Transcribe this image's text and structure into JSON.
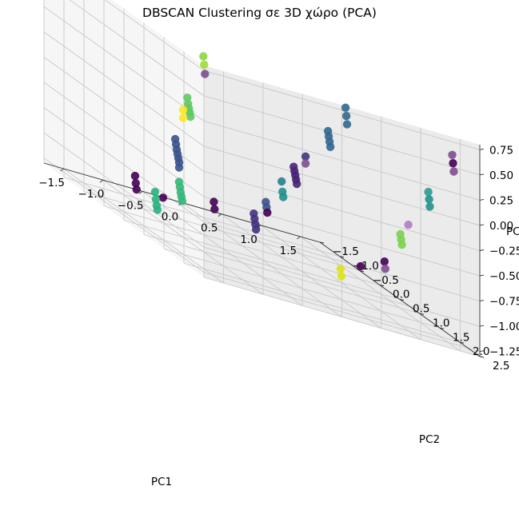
{
  "chart_data": {
    "type": "scatter",
    "projection": "3d",
    "title": "DBSCAN Clustering σε 3D χώρο (PCA)",
    "xlabel": "PC1",
    "ylabel": "PC2",
    "zlabel": "PC",
    "xlim": [
      -1.75,
      1.75
    ],
    "ylim": [
      -1.5,
      2.5
    ],
    "zlim": [
      -1.3,
      0.8
    ],
    "xticks": [
      "−1.5",
      "−1.0",
      "−0.5",
      "0.0",
      "0.5",
      "1.0",
      "1.5"
    ],
    "yticks": [
      "−1.5",
      "−1.0",
      "−0.5",
      "0.0",
      "0.5",
      "1.0",
      "1.5",
      "2.0",
      "2.5"
    ],
    "zticks": [
      "−1.25",
      "−1.00",
      "−0.75",
      "−0.50",
      "−0.25",
      "0.00",
      "0.25",
      "0.50",
      "0.75"
    ],
    "grid": true,
    "colormap": "viridis",
    "points": [
      {
        "x": -1.25,
        "y": 1.5,
        "z": 0.72,
        "c": "#8bd646"
      },
      {
        "x": -1.24,
        "y": 1.5,
        "z": 0.64,
        "c": "#a0da39"
      },
      {
        "x": -1.23,
        "y": 1.5,
        "z": 0.55,
        "c": "#7e4e90"
      },
      {
        "x": -1.2,
        "y": 1.0,
        "z": 0.18,
        "c": "#5ec962"
      },
      {
        "x": -1.19,
        "y": 1.0,
        "z": 0.12,
        "c": "#5ec962"
      },
      {
        "x": -1.18,
        "y": 1.0,
        "z": 0.08,
        "c": "#5ec962"
      },
      {
        "x": -1.17,
        "y": 1.0,
        "z": 0.04,
        "c": "#5ec962"
      },
      {
        "x": -1.16,
        "y": 1.0,
        "z": 0.0,
        "c": "#5ec962"
      },
      {
        "x": -1.05,
        "y": 0.6,
        "z": -0.02,
        "c": "#fde725"
      },
      {
        "x": -1.05,
        "y": 0.6,
        "z": -0.1,
        "c": "#fde725"
      },
      {
        "x": -1.1,
        "y": 0.5,
        "z": -0.35,
        "c": "#3b528b"
      },
      {
        "x": -1.09,
        "y": 0.5,
        "z": -0.4,
        "c": "#3b528b"
      },
      {
        "x": -1.08,
        "y": 0.5,
        "z": -0.45,
        "c": "#3b528b"
      },
      {
        "x": -1.07,
        "y": 0.5,
        "z": -0.49,
        "c": "#3b528b"
      },
      {
        "x": -1.06,
        "y": 0.5,
        "z": -0.53,
        "c": "#3b528b"
      },
      {
        "x": -1.05,
        "y": 0.5,
        "z": -0.57,
        "c": "#3b528b"
      },
      {
        "x": -1.05,
        "y": 0.5,
        "z": -0.62,
        "c": "#3b528b"
      },
      {
        "x": -1.0,
        "y": 0.4,
        "z": -0.78,
        "c": "#35b779"
      },
      {
        "x": -0.99,
        "y": 0.4,
        "z": -0.83,
        "c": "#35b779"
      },
      {
        "x": -0.98,
        "y": 0.4,
        "z": -0.88,
        "c": "#35b779"
      },
      {
        "x": -0.97,
        "y": 0.4,
        "z": -0.92,
        "c": "#35b779"
      },
      {
        "x": -0.96,
        "y": 0.4,
        "z": -0.96,
        "c": "#35b779"
      },
      {
        "x": -1.0,
        "y": 0.0,
        "z": -1.05,
        "c": "#440154"
      },
      {
        "x": -1.0,
        "y": -0.2,
        "z": -1.05,
        "c": "#2ab07f"
      },
      {
        "x": -0.99,
        "y": -0.2,
        "z": -1.12,
        "c": "#2ab07f"
      },
      {
        "x": -0.98,
        "y": -0.2,
        "z": -1.18,
        "c": "#2ab07f"
      },
      {
        "x": -0.97,
        "y": -0.2,
        "z": -1.22,
        "c": "#2ab07f"
      },
      {
        "x": -0.95,
        "y": -0.8,
        "z": -1.05,
        "c": "#440154"
      },
      {
        "x": -0.94,
        "y": -0.8,
        "z": -1.12,
        "c": "#440154"
      },
      {
        "x": -0.93,
        "y": -0.8,
        "z": -1.18,
        "c": "#440154"
      },
      {
        "x": 0.3,
        "y": 2.0,
        "z": 0.7,
        "c": "#31688e"
      },
      {
        "x": 0.31,
        "y": 2.0,
        "z": 0.62,
        "c": "#31688e"
      },
      {
        "x": 0.32,
        "y": 2.0,
        "z": 0.54,
        "c": "#31688e"
      },
      {
        "x": 0.28,
        "y": 1.6,
        "z": 0.35,
        "c": "#31688e"
      },
      {
        "x": 0.29,
        "y": 1.6,
        "z": 0.3,
        "c": "#31688e"
      },
      {
        "x": 0.3,
        "y": 1.6,
        "z": 0.25,
        "c": "#31688e"
      },
      {
        "x": 0.31,
        "y": 1.6,
        "z": 0.2,
        "c": "#31688e"
      },
      {
        "x": 0.25,
        "y": 1.1,
        "z": -0.05,
        "c": "#46327e"
      },
      {
        "x": 0.25,
        "y": 1.1,
        "z": -0.12,
        "c": "#7e4e90"
      },
      {
        "x": 0.2,
        "y": 0.9,
        "z": -0.22,
        "c": "#482475"
      },
      {
        "x": 0.21,
        "y": 0.9,
        "z": -0.26,
        "c": "#482475"
      },
      {
        "x": 0.22,
        "y": 0.9,
        "z": -0.3,
        "c": "#482475"
      },
      {
        "x": 0.23,
        "y": 0.9,
        "z": -0.34,
        "c": "#482475"
      },
      {
        "x": 0.24,
        "y": 0.9,
        "z": -0.38,
        "c": "#482475"
      },
      {
        "x": 0.2,
        "y": 0.6,
        "z": -0.45,
        "c": "#26828e"
      },
      {
        "x": 0.21,
        "y": 0.6,
        "z": -0.55,
        "c": "#21918c"
      },
      {
        "x": 0.22,
        "y": 0.6,
        "z": -0.6,
        "c": "#21918c"
      },
      {
        "x": 0.15,
        "y": 0.3,
        "z": -0.75,
        "c": "#3b528b"
      },
      {
        "x": 0.16,
        "y": 0.3,
        "z": -0.8,
        "c": "#3b528b"
      },
      {
        "x": 0.17,
        "y": 0.3,
        "z": -0.85,
        "c": "#440154"
      },
      {
        "x": 0.15,
        "y": 0.0,
        "z": -0.95,
        "c": "#46327e"
      },
      {
        "x": 0.16,
        "y": 0.0,
        "z": -1.0,
        "c": "#46327e"
      },
      {
        "x": 0.17,
        "y": 0.0,
        "z": -1.05,
        "c": "#46327e"
      },
      {
        "x": 0.18,
        "y": 0.0,
        "z": -1.1,
        "c": "#46327e"
      },
      {
        "x": 0.1,
        "y": -0.9,
        "z": -1.1,
        "c": "#440154"
      },
      {
        "x": 0.11,
        "y": -0.9,
        "z": -1.17,
        "c": "#440154"
      },
      {
        "x": 1.4,
        "y": 2.5,
        "z": 0.62,
        "c": "#7e4e90"
      },
      {
        "x": 1.41,
        "y": 2.5,
        "z": 0.54,
        "c": "#440154"
      },
      {
        "x": 1.42,
        "y": 2.5,
        "z": 0.46,
        "c": "#7e4e90"
      },
      {
        "x": 1.35,
        "y": 2.0,
        "z": 0.1,
        "c": "#2a9d8f"
      },
      {
        "x": 1.36,
        "y": 2.0,
        "z": 0.03,
        "c": "#21918c"
      },
      {
        "x": 1.37,
        "y": 2.0,
        "z": -0.04,
        "c": "#21918c"
      },
      {
        "x": 1.3,
        "y": 1.6,
        "z": -0.35,
        "c": "#b07cc6"
      },
      {
        "x": 1.3,
        "y": 1.4,
        "z": -0.5,
        "c": "#7ad151"
      },
      {
        "x": 1.31,
        "y": 1.4,
        "z": -0.55,
        "c": "#7ad151"
      },
      {
        "x": 1.32,
        "y": 1.4,
        "z": -0.6,
        "c": "#7ad151"
      },
      {
        "x": 1.2,
        "y": 1.2,
        "z": -0.85,
        "c": "#440154"
      },
      {
        "x": 1.21,
        "y": 1.2,
        "z": -0.92,
        "c": "#7e4e90"
      },
      {
        "x": 1.15,
        "y": 0.7,
        "z": -1.05,
        "c": "#440154"
      },
      {
        "x": 1.1,
        "y": 0.3,
        "z": -1.2,
        "c": "#dde318"
      },
      {
        "x": 1.11,
        "y": 0.3,
        "z": -1.27,
        "c": "#dde318"
      }
    ]
  }
}
